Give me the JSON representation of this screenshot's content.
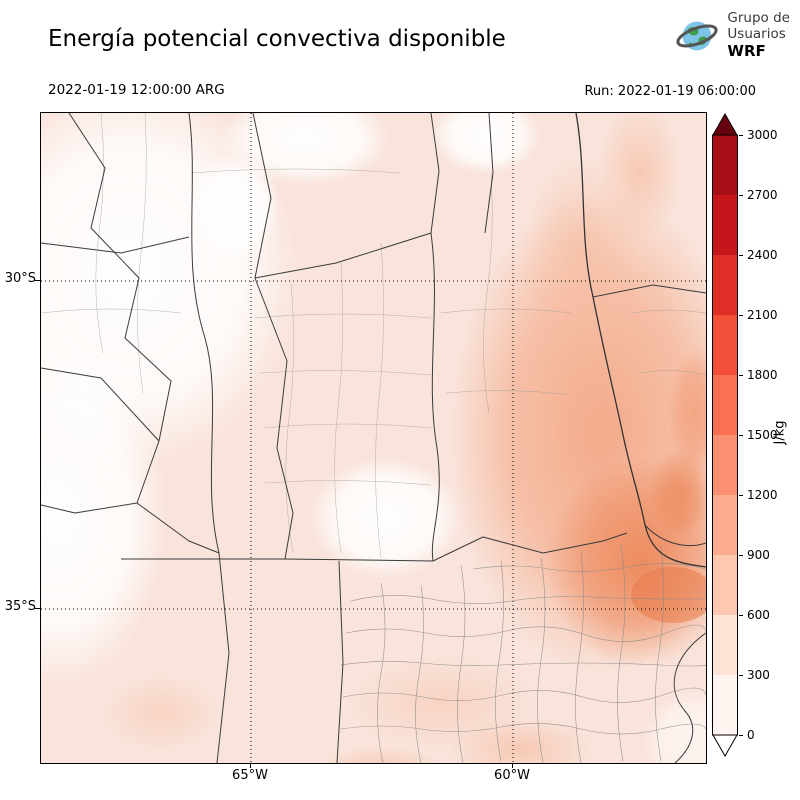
{
  "header": {
    "title": "Energía potencial convectiva disponible",
    "logo": {
      "line1": "Grupo de",
      "line2": "Usuarios",
      "line3": "WRF"
    }
  },
  "times": {
    "valid": "2022-01-19 12:00:00 ARG",
    "run": "Run: 2022-01-19 06:00:00"
  },
  "axes": {
    "lat_labels": [
      "30°S",
      "35°S"
    ],
    "lon_labels": [
      "65°W",
      "60°W"
    ]
  },
  "colorbar": {
    "unit": "J/kg",
    "tick_labels_top_to_bottom": [
      "3000",
      "2700",
      "2400",
      "2100",
      "1800",
      "1500",
      "1200",
      "900",
      "600",
      "300",
      "0"
    ],
    "segment_colors_low_to_high": [
      "#fff5f0",
      "#fee3d7",
      "#fdc7b0",
      "#fcab8f",
      "#fc8f6f",
      "#fb7050",
      "#f44f39",
      "#e02d26",
      "#c5161c",
      "#a50f15"
    ],
    "arrow_over_color": "#67000d",
    "arrow_under_color": "#ffffff"
  },
  "chart_data": {
    "type": "heatmap",
    "title": "Energía potencial convectiva disponible",
    "variable": "CAPE",
    "unit": "J/kg",
    "valid_time": "2022-01-19 12:00:00 ARG",
    "run_time": "2022-01-19 06:00:00",
    "levels": [
      0,
      300,
      600,
      900,
      1200,
      1500,
      1800,
      2100,
      2400,
      2700,
      3000
    ],
    "colormap": "Reds",
    "axis_ticks": {
      "lat": [
        "30°S",
        "35°S"
      ],
      "lon": [
        "65°W",
        "60°W"
      ]
    },
    "field_summary": {
      "most_of_domain": "0-600",
      "west_andes_and_center_patches": "0-300",
      "east_northeast_maximum_band": "900-1500"
    }
  }
}
